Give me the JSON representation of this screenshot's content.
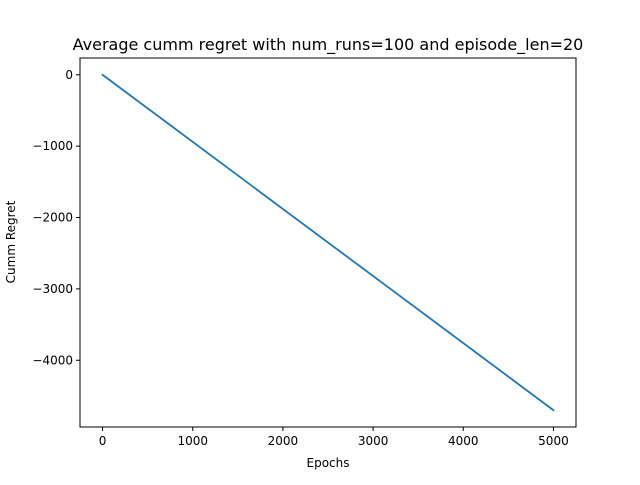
{
  "chart_data": {
    "type": "line",
    "title": "Average cumm regret with num_runs=100 and episode_len=20",
    "xlabel": "Epochs",
    "ylabel": "Cumm Regret",
    "x_ticks": [
      0,
      1000,
      2000,
      3000,
      4000,
      5000
    ],
    "x_tick_labels": [
      "0",
      "1000",
      "2000",
      "3000",
      "4000",
      "5000"
    ],
    "y_ticks": [
      0,
      -1000,
      -2000,
      -3000,
      -4000
    ],
    "y_tick_labels": [
      "0",
      "−1000",
      "−2000",
      "−3000",
      "−4000"
    ],
    "xlim": [
      -250,
      5250
    ],
    "ylim": [
      -4935,
      235
    ],
    "grid": false,
    "series": [
      {
        "color": "#1f77b4",
        "x": [
          0,
          5000
        ],
        "y": [
          0,
          -4700
        ]
      }
    ]
  }
}
